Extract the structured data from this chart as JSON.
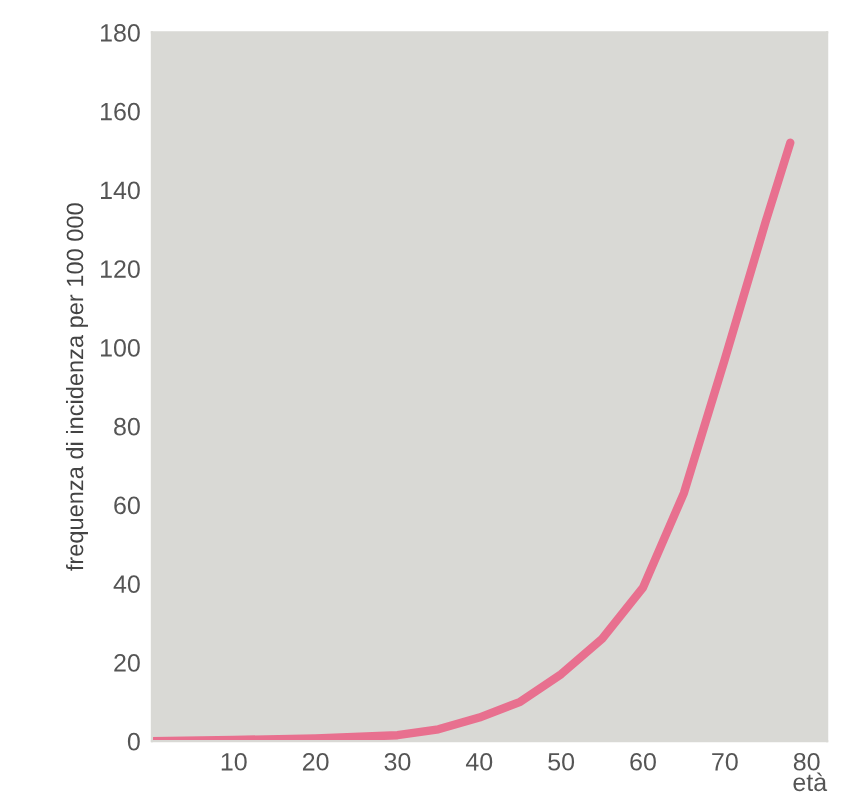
{
  "chart_data": {
    "type": "line",
    "xlabel": "età",
    "ylabel": "frequenza di incidenza per 100 000",
    "x": [
      0,
      10,
      20,
      30,
      35,
      40,
      45,
      50,
      55,
      60,
      65,
      70,
      75,
      78
    ],
    "series": [
      {
        "color": "#e8708f",
        "values": [
          0,
          0.3,
          0.7,
          1.5,
          3,
          6,
          10,
          17,
          26,
          39,
          63,
          97,
          132,
          152
        ]
      }
    ],
    "xlim": [
      0,
      82.5
    ],
    "ylim": [
      0,
      180
    ],
    "xticks": [
      10,
      20,
      30,
      40,
      50,
      60,
      70,
      80
    ],
    "yticks": [
      0,
      20,
      40,
      60,
      80,
      100,
      120,
      140,
      160,
      180
    ],
    "grid": false,
    "legend": false,
    "marker": "none",
    "line_style": "solid"
  }
}
